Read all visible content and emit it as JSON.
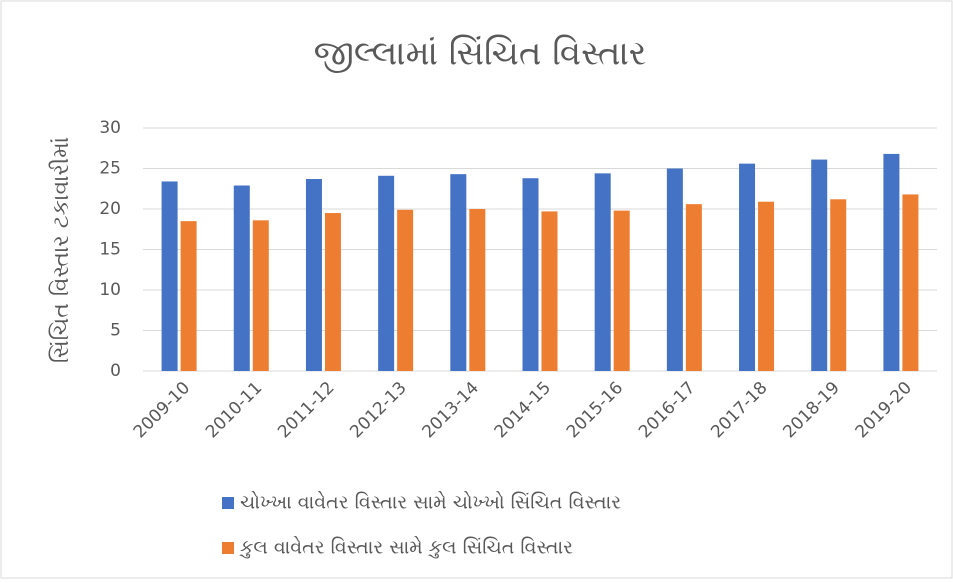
{
  "chart_data": {
    "type": "bar",
    "title": "જીલ્લામાં સિંચિત વિસ્તાર",
    "y_label": "સિંચિત વિસ્તાર ટકાવારીમાં",
    "categories": [
      "2009-10",
      "2010-11",
      "2011-12",
      "2012-13",
      "2013-14",
      "2014-15",
      "2015-16",
      "2016-17",
      "2017-18",
      "2018-19",
      "2019-20"
    ],
    "series": [
      {
        "name": "ચોખ્ખા વાવેતર વિસ્તાર સામે ચોખ્ખો સિંચિત વિસ્તાર",
        "color": "#4472c4",
        "values": [
          23.4,
          22.9,
          23.7,
          24.1,
          24.3,
          23.8,
          24.4,
          25.0,
          25.6,
          26.1,
          26.8
        ]
      },
      {
        "name": "કુલ વાવેતર વિસ્તાર સામે કુલ સિંચિત વિસ્તાર",
        "color": "#ed7d31",
        "values": [
          18.5,
          18.6,
          19.5,
          19.9,
          20.0,
          19.7,
          19.8,
          20.6,
          20.9,
          21.2,
          21.8
        ]
      }
    ],
    "ylim": [
      0,
      30
    ],
    "yticks": [
      0,
      5,
      10,
      15,
      20,
      25,
      30
    ],
    "grid": true,
    "legend": "bottom"
  }
}
